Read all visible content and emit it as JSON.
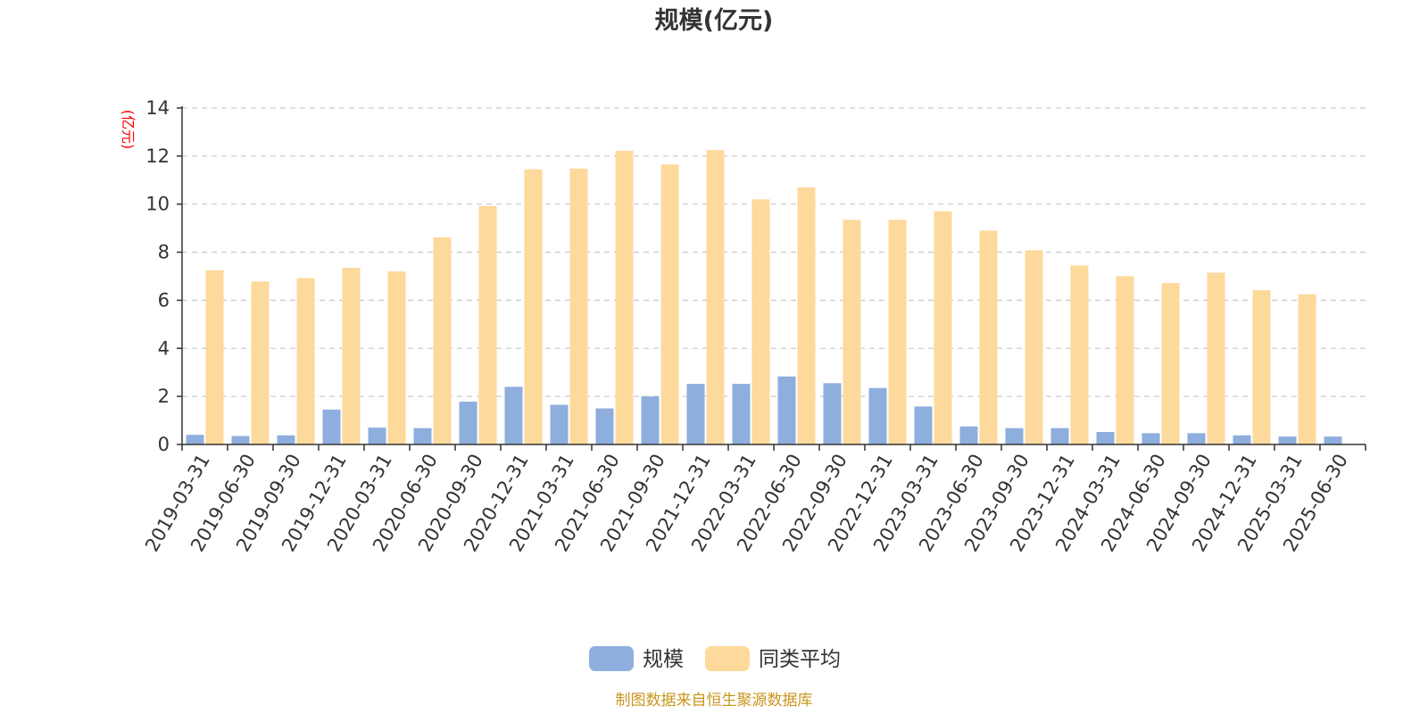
{
  "chart_data": {
    "type": "bar",
    "title": "规模(亿元)",
    "ylabel": "(亿元)",
    "xlabel": "",
    "ylim": [
      0,
      14
    ],
    "yticks": [
      0,
      2,
      4,
      6,
      8,
      10,
      12,
      14
    ],
    "grid": true,
    "legend_position": "bottom",
    "categories": [
      "2019-03-31",
      "2019-06-30",
      "2019-09-30",
      "2019-12-31",
      "2020-03-31",
      "2020-06-30",
      "2020-09-30",
      "2020-12-31",
      "2021-03-31",
      "2021-06-30",
      "2021-09-30",
      "2021-12-31",
      "2022-03-31",
      "2022-06-30",
      "2022-09-30",
      "2022-12-31",
      "2023-03-31",
      "2023-06-30",
      "2023-09-30",
      "2023-12-31",
      "2024-03-31",
      "2024-06-30",
      "2024-09-30",
      "2024-12-31",
      "2025-03-31",
      "2025-06-30"
    ],
    "series": [
      {
        "name": "规模",
        "color": "#8eaedd",
        "values": [
          0.4,
          0.35,
          0.38,
          1.45,
          0.7,
          0.68,
          1.78,
          2.4,
          1.65,
          1.5,
          2.0,
          2.52,
          2.52,
          2.83,
          2.55,
          2.35,
          1.58,
          0.75,
          0.68,
          0.68,
          0.52,
          0.47,
          0.47,
          0.38,
          0.33,
          0.33
        ]
      },
      {
        "name": "同类平均",
        "color": "#fed99c",
        "values": [
          7.25,
          6.78,
          6.92,
          7.35,
          7.2,
          8.62,
          9.92,
          11.45,
          11.48,
          12.22,
          11.65,
          12.25,
          10.2,
          10.7,
          9.35,
          9.35,
          9.7,
          8.9,
          8.08,
          7.45,
          7.0,
          6.72,
          7.15,
          6.42,
          6.25,
          null
        ]
      }
    ],
    "footnote": "制图数据来自恒生聚源数据库"
  }
}
